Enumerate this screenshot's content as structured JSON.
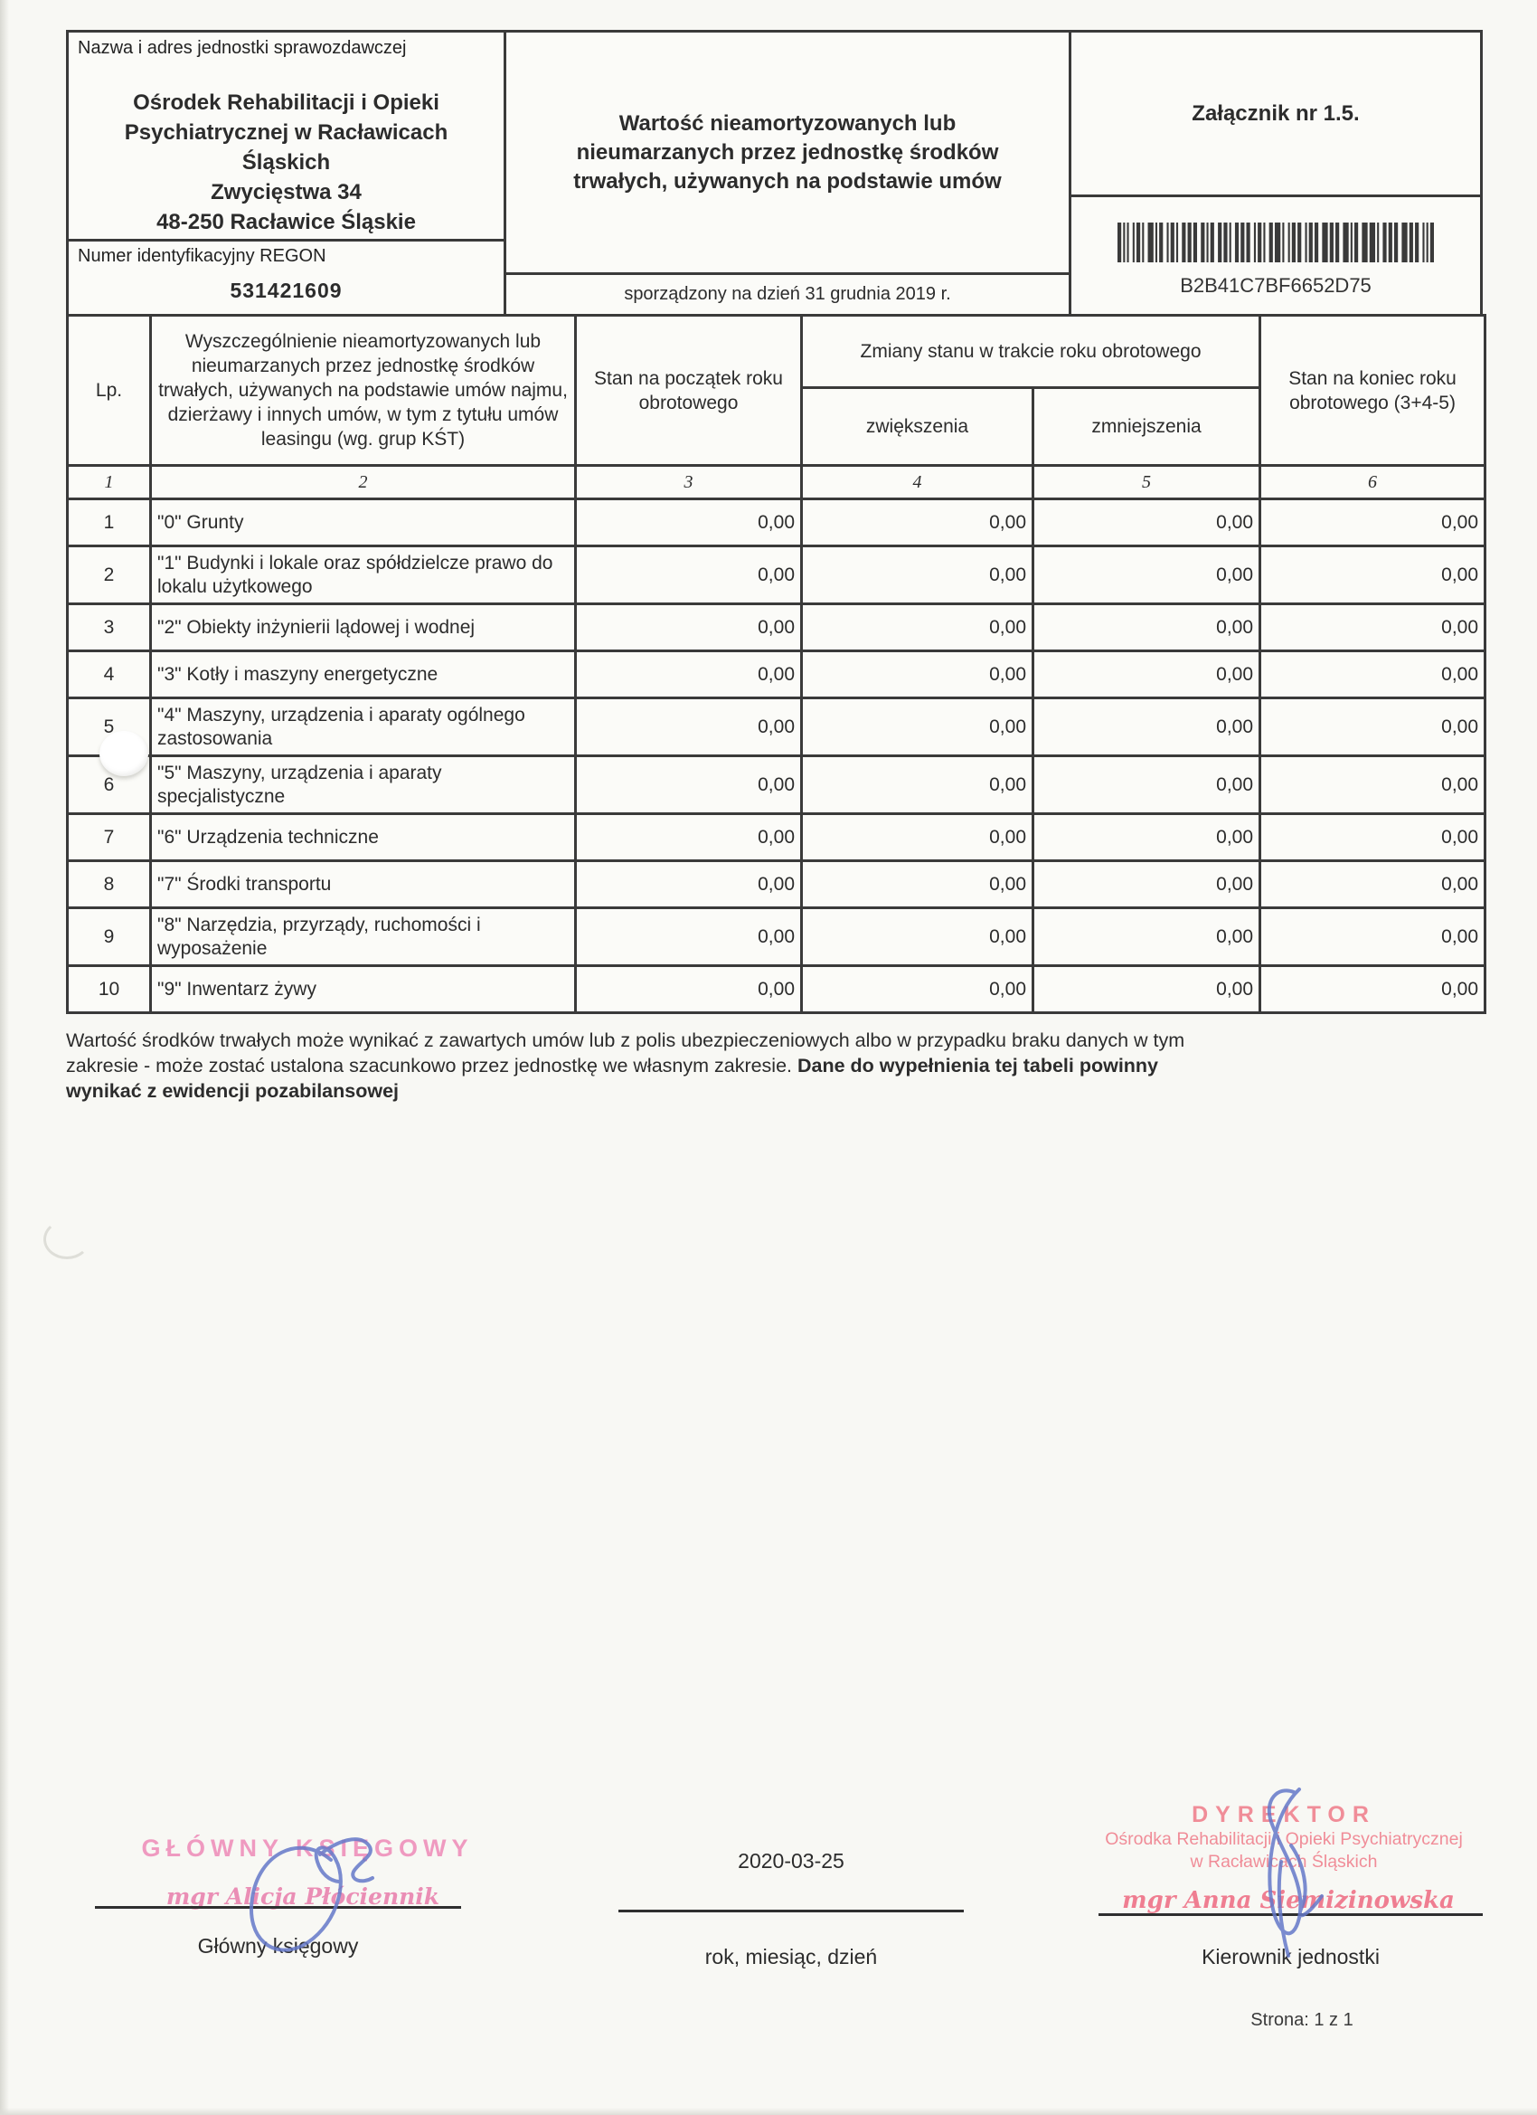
{
  "header": {
    "name_label": "Nazwa i adres jednostki sprawozdawczej",
    "org_name_lines": [
      "Ośrodek Rehabilitacji i Opieki",
      "Psychiatrycznej w Racławicach",
      "Śląskich",
      "Zwycięstwa 34",
      "48-250 Racławice Śląskie"
    ],
    "title_lines": [
      "Wartość nieamortyzowanych lub",
      "nieumarzanych przez jednostkę środków",
      "trwałych, używanych na podstawie umów"
    ],
    "attachment": "Załącznik nr 1.5.",
    "regon_label": "Numer identyfikacyjny REGON",
    "regon_value": "531421609",
    "prepared_label": "sporządzony na dzień  31 grudnia 2019  r.",
    "barcode_text": "B2B41C7BF6652D75"
  },
  "table": {
    "lp_label": "Lp.",
    "desc_label": "Wyszczególnienie nieamortyzowanych lub nieumarzanych przez jednostkę środków trwałych, używanych na podstawie umów najmu, dzierżawy i innych umów, w tym z tytułu umów leasingu (wg. grup KŚT)",
    "start_label": "Stan na początek roku obrotowego",
    "changes_label": "Zmiany stanu w trakcie roku obrotowego",
    "inc_label": "zwiększenia",
    "dec_label": "zmniejszenia",
    "end_label": "Stan na koniec roku obrotowego (3+4-5)",
    "col_numbers": [
      "1",
      "2",
      "3",
      "4",
      "5",
      "6"
    ],
    "rows": [
      {
        "lp": "1",
        "name": "\"0\" Grunty",
        "start": "0,00",
        "inc": "0,00",
        "dec": "0,00",
        "end": "0,00"
      },
      {
        "lp": "2",
        "name": "\"1\" Budynki i lokale oraz spółdzielcze prawo do lokalu użytkowego",
        "start": "0,00",
        "inc": "0,00",
        "dec": "0,00",
        "end": "0,00"
      },
      {
        "lp": "3",
        "name": "\"2\" Obiekty inżynierii lądowej i wodnej",
        "start": "0,00",
        "inc": "0,00",
        "dec": "0,00",
        "end": "0,00"
      },
      {
        "lp": "4",
        "name": "\"3\" Kotły i maszyny energetyczne",
        "start": "0,00",
        "inc": "0,00",
        "dec": "0,00",
        "end": "0,00"
      },
      {
        "lp": "5",
        "name": "\"4\" Maszyny, urządzenia i aparaty ogólnego zastosowania",
        "start": "0,00",
        "inc": "0,00",
        "dec": "0,00",
        "end": "0,00"
      },
      {
        "lp": "6",
        "name": "\"5\" Maszyny, urządzenia i aparaty specjalistyczne",
        "start": "0,00",
        "inc": "0,00",
        "dec": "0,00",
        "end": "0,00"
      },
      {
        "lp": "7",
        "name": "\"6\" Urządzenia techniczne",
        "start": "0,00",
        "inc": "0,00",
        "dec": "0,00",
        "end": "0,00"
      },
      {
        "lp": "8",
        "name": "\"7\" Środki transportu",
        "start": "0,00",
        "inc": "0,00",
        "dec": "0,00",
        "end": "0,00"
      },
      {
        "lp": "9",
        "name": "\"8\" Narzędzia, przyrządy, ruchomości i wyposażenie",
        "start": "0,00",
        "inc": "0,00",
        "dec": "0,00",
        "end": "0,00"
      },
      {
        "lp": "10",
        "name": "\"9\" Inwentarz żywy",
        "start": "0,00",
        "inc": "0,00",
        "dec": "0,00",
        "end": "0,00"
      }
    ]
  },
  "note": {
    "line1": "Wartość środków trwałych może wynikać z zawartych umów lub z polis ubezpieczeniowych albo w przypadku braku danych w tym",
    "line2_regular": "zakresie - może zostać ustalona szacunkowo przez jednostkę we własnym zakresie. ",
    "line2_bold": "Dane do wypełnienia tej tabeli powinny",
    "line3_bold": "wynikać z ewidencji pozabilansowej"
  },
  "signatures": {
    "left": {
      "stamp_title": "GŁÓWNY KSIĘGOWY",
      "stamp_name": "mgr Alicja Płóciennik",
      "label": "Główny księgowy"
    },
    "center": {
      "date": "2020-03-25",
      "label": "rok, miesiąc, dzień"
    },
    "right": {
      "stamp_title": "DYREKTOR",
      "stamp_org_line1": "Ośrodka Rehabilitacji i Opieki Psychiatrycznej",
      "stamp_org_line2": "w Racławicach Śląskich",
      "stamp_name": "mgr Anna Siemizinowska",
      "label": "Kierownik jednostki"
    }
  },
  "footer": {
    "page_label": "Strona: 1  z 1"
  }
}
